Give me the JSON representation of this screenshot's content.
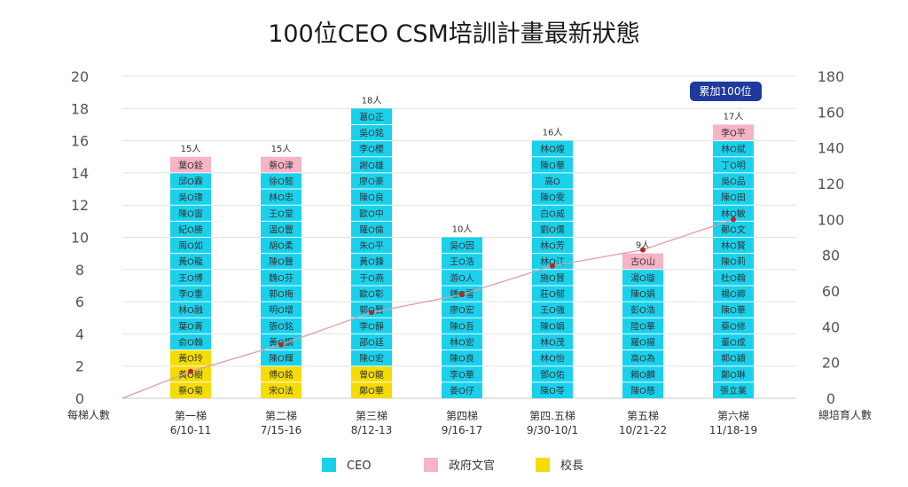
{
  "chart_data": {
    "type": "bar",
    "title": "100位CEO CSM培訓計畫最新狀態",
    "ylabel_left": "每梯人數",
    "ylabel_right": "總培育人數",
    "ylim_left": [
      0,
      20
    ],
    "yticks_left": [
      0,
      2,
      4,
      6,
      8,
      10,
      12,
      14,
      16,
      18,
      20
    ],
    "ylim_right": [
      0,
      180
    ],
    "yticks_right": [
      0,
      20,
      40,
      60,
      80,
      100,
      120,
      140,
      160,
      180
    ],
    "grid": true,
    "legend_position": "bottom",
    "annotation": "累加100位",
    "colors": {
      "CEO": "#1ad1ec",
      "政府文官": "#f7b3c8",
      "校長": "#f4dc05",
      "line": "#d9a0a5",
      "marker": "#b5282a",
      "badge": "#1e3a9c"
    },
    "categories": [
      {
        "name": "第一梯",
        "date": "6/10-11"
      },
      {
        "name": "第二梯",
        "date": "7/15-16"
      },
      {
        "name": "第三梯",
        "date": "8/12-13"
      },
      {
        "name": "第四梯",
        "date": "9/16-17"
      },
      {
        "name": "第四.五梯",
        "date": "9/30-10/1"
      },
      {
        "name": "第五梯",
        "date": "10/21-22"
      },
      {
        "name": "第六梯",
        "date": "11/18-19"
      }
    ],
    "series": [
      {
        "name": "校長",
        "values": [
          3,
          2,
          2,
          0,
          0,
          0,
          0
        ]
      },
      {
        "name": "CEO",
        "values": [
          11,
          12,
          16,
          10,
          16,
          8,
          16
        ]
      },
      {
        "name": "政府文官",
        "values": [
          1,
          1,
          0,
          0,
          0,
          1,
          1
        ]
      }
    ],
    "totals": [
      "15人",
      "15人",
      "18人",
      "10人",
      "16人",
      "9人",
      "17人"
    ],
    "cumulative": {
      "name": "總培育人數",
      "values": [
        0,
        15,
        30,
        48,
        58,
        74,
        83,
        100
      ]
    },
    "names": [
      [
        "蔡O菊",
        "黃O樹",
        "黃O玲",
        "俞O翰",
        "葉O菁",
        "林O融",
        "李O重",
        "王O博",
        "黃O龍",
        "周O如",
        "紀O勝",
        "陳O宙",
        "吳O瑋",
        "邱O霖",
        "葉O銓"
      ],
      [
        "宋O法",
        "傅O銘",
        "陳O輝",
        "黃O鋼",
        "張O銘",
        "明O增",
        "郭O梅",
        "魏O芬",
        "陳O聲",
        "胡O柔",
        "溫O豐",
        "王O堂",
        "林O忠",
        "徐O懿",
        "蔡O津"
      ],
      [
        "鄭O華",
        "曾O龍",
        "陳O宏",
        "邵O廷",
        "李O靜",
        "郭O賢",
        "歐O彰",
        "于O燕",
        "黃O鋒",
        "朱O平",
        "羅O倫",
        "歐O中",
        "陳O良",
        "廖O豪",
        "謝O雄",
        "李O櫻",
        "吳O銘",
        "葛O正"
      ],
      [
        "姜O仔",
        "李O華",
        "陳O良",
        "林O宏",
        "陳O吾",
        "廖O宏",
        "鍾O雪",
        "游O人",
        "王O浩",
        "吳O因"
      ],
      [
        "陳O苓",
        "鄧O佑",
        "林O怡",
        "林O茂",
        "陳O娟",
        "王O強",
        "莊O郁",
        "施O賢",
        "林O江",
        "林O芳",
        "劉O儒",
        "白O威",
        "陳O雯",
        "高O",
        "陳O華",
        "林O煌"
      ],
      [
        "陳O慈",
        "賴O麟",
        "高O為",
        "羅O揚",
        "陸O華",
        "彭O浩",
        "陳O娟",
        "湯O璇",
        "古O山"
      ],
      [
        "張立業",
        "鄭O琳",
        "郭O穎",
        "董O成",
        "蔡O修",
        "陳O華",
        "楊O卿",
        "杜O翰",
        "陳O莉",
        "林O賢",
        "鄭O文",
        "林O敏",
        "陳O田",
        "吳O品",
        "丁O明",
        "林O斌",
        "李O平"
      ]
    ]
  }
}
